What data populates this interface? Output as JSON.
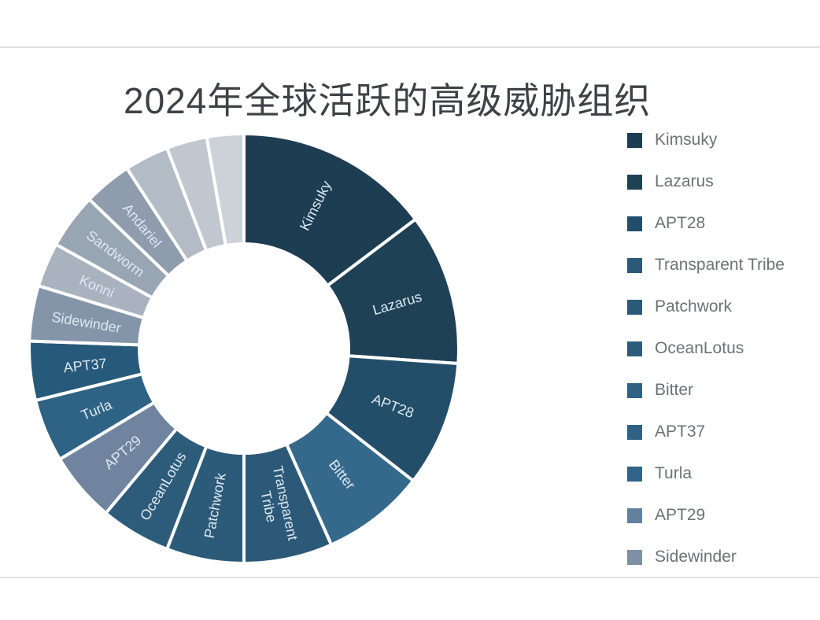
{
  "page": {
    "title": "2024年全球活跃的高级威胁组织",
    "title_color": "#3e4247",
    "background": "#ffffff",
    "divider_color": "#dedede"
  },
  "legend": {
    "position": "right",
    "items": [
      {
        "label": "Kimsuky",
        "color": "#1d3d53"
      },
      {
        "label": "Lazarus",
        "color": "#1e4156"
      },
      {
        "label": "APT28",
        "color": "#234e69"
      },
      {
        "label": "Transparent Tribe",
        "color": "#2b5977"
      },
      {
        "label": "Patchwork",
        "color": "#2c5b79"
      },
      {
        "label": "OceanLotus",
        "color": "#2d5c7a"
      },
      {
        "label": "Bitter",
        "color": "#2e6183"
      },
      {
        "label": "APT37",
        "color": "#2e6285"
      },
      {
        "label": "Turla",
        "color": "#306488"
      },
      {
        "label": "APT29",
        "color": "#64809f"
      },
      {
        "label": "Sidewinder",
        "color": "#7e90a5"
      }
    ]
  },
  "chart_data": {
    "type": "pie",
    "variant": "donut",
    "title": "2024年全球活跃的高级威胁组织",
    "legend_position": "right",
    "direction": "clockwise",
    "start_angle_deg": 0,
    "inner_radius_ratio": 0.49,
    "slice_border_color": "#ffffff",
    "slice_label_color": "#dde8f0",
    "segments": [
      {
        "name": "Kimsuky",
        "share_pct": 14.7,
        "angle_deg": 53,
        "color": "#1d3d53",
        "label_lines": [
          "Kimsuky"
        ]
      },
      {
        "name": "Lazarus",
        "share_pct": 11.4,
        "angle_deg": 41,
        "color": "#1e4156",
        "label_lines": [
          "Lazarus"
        ]
      },
      {
        "name": "APT28",
        "share_pct": 9.4,
        "angle_deg": 34,
        "color": "#234e69",
        "label_lines": [
          "APT28"
        ]
      },
      {
        "name": "Bitter",
        "share_pct": 7.8,
        "angle_deg": 28,
        "color": "#35698c",
        "label_lines": [
          "Bitter"
        ]
      },
      {
        "name": "Transparent Tribe",
        "share_pct": 6.7,
        "angle_deg": 24,
        "color": "#2b5977",
        "label_lines": [
          "Transparent",
          "Tribe"
        ]
      },
      {
        "name": "Patchwork",
        "share_pct": 5.8,
        "angle_deg": 21,
        "color": "#2c5b79",
        "label_lines": [
          "Patchwork"
        ]
      },
      {
        "name": "OceanLotus",
        "share_pct": 5.3,
        "angle_deg": 19,
        "color": "#2d5c7a",
        "label_lines": [
          "OceanLotus"
        ]
      },
      {
        "name": "APT29",
        "share_pct": 5.3,
        "angle_deg": 19,
        "color": "#70849f",
        "label_lines": [
          "APT29"
        ]
      },
      {
        "name": "Turla",
        "share_pct": 4.7,
        "angle_deg": 17,
        "color": "#2f6386",
        "label_lines": [
          "Turla"
        ]
      },
      {
        "name": "APT37",
        "share_pct": 4.4,
        "angle_deg": 16,
        "color": "#27597b",
        "label_lines": [
          "APT37"
        ]
      },
      {
        "name": "Sidewinder",
        "share_pct": 4.2,
        "angle_deg": 15,
        "color": "#8595a9",
        "label_lines": [
          "Sidewinder"
        ]
      },
      {
        "name": "Konni",
        "share_pct": 3.3,
        "angle_deg": 12,
        "color": "#a9b3bf",
        "label_lines": [
          "Konni"
        ]
      },
      {
        "name": "Sandworm",
        "share_pct": 4.2,
        "angle_deg": 15,
        "color": "#98a5b3",
        "label_lines": [
          "Sandworm"
        ]
      },
      {
        "name": "Andariel",
        "share_pct": 3.6,
        "angle_deg": 13,
        "color": "#8e9cae",
        "label_lines": [
          "Andariel"
        ]
      },
      {
        "name": "",
        "share_pct": 3.3,
        "angle_deg": 12,
        "color": "#b3bbc6",
        "label_lines": []
      },
      {
        "name": "",
        "share_pct": 3.1,
        "angle_deg": 11,
        "color": "#c0c7cf",
        "label_lines": []
      },
      {
        "name": "",
        "share_pct": 2.8,
        "angle_deg": 10,
        "color": "#cdd2d9",
        "label_lines": []
      }
    ]
  }
}
